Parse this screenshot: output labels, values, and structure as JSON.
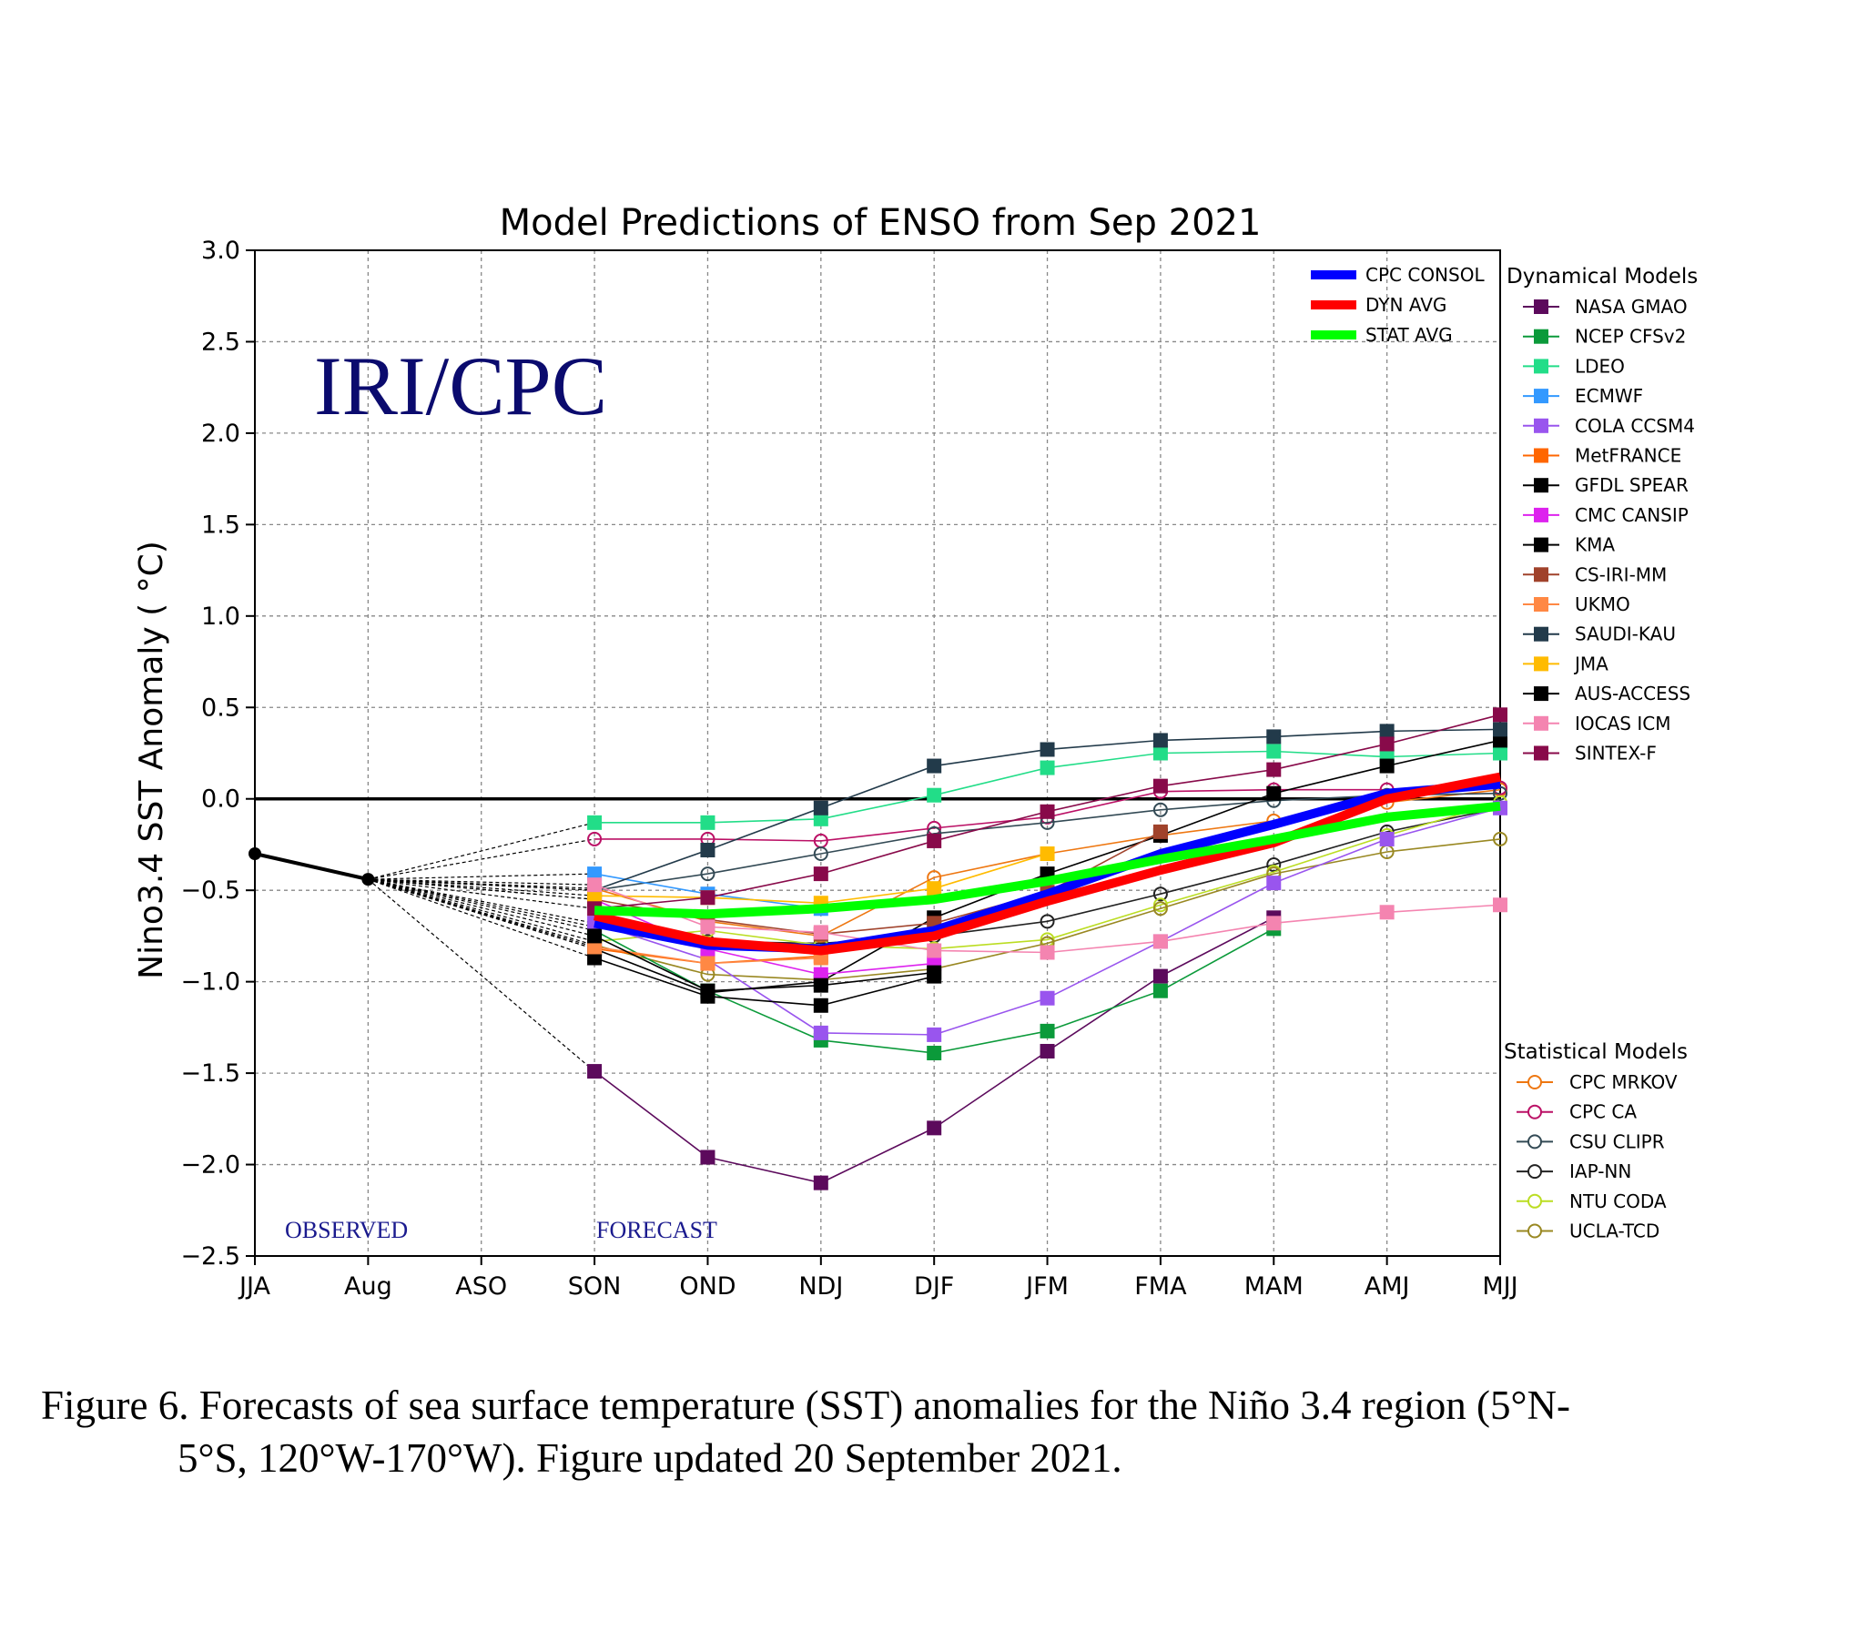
{
  "chart_data": {
    "type": "line",
    "title": "Model Predictions of ENSO from Sep 2021",
    "ylabel": "Nino3.4 SST Anomaly ( °C)",
    "xlabel": "",
    "categories": [
      "JJA",
      "Aug",
      "ASO",
      "SON",
      "OND",
      "NDJ",
      "DJF",
      "JFM",
      "FMA",
      "MAM",
      "AMJ",
      "MJJ"
    ],
    "ylim": [
      -2.5,
      3.0
    ],
    "yticks": [
      3.0,
      2.5,
      2.0,
      1.5,
      1.0,
      0.5,
      0.0,
      -0.5,
      -1.0,
      -1.5,
      -2.0,
      -2.5
    ],
    "ytick_labels": [
      "3.0",
      "2.5",
      "2.0",
      "1.5",
      "1.0",
      "0.5",
      "0.0",
      "−0.5",
      "−1.0",
      "−1.5",
      "−2.0",
      "−2.5"
    ],
    "grid": true,
    "watermark": "IRI/CPC",
    "annotations": {
      "observed": "OBSERVED",
      "forecast": "FORECAST"
    },
    "observed": {
      "x": [
        "JJA",
        "Aug"
      ],
      "values": [
        -0.3,
        -0.44
      ],
      "color": "#000000"
    },
    "consensus": [
      {
        "name": "CPC CONSOL",
        "color": "#0000ff",
        "values": [
          null,
          null,
          null,
          -0.68,
          -0.8,
          -0.82,
          -0.72,
          -0.52,
          -0.3,
          -0.14,
          0.03,
          0.08
        ]
      },
      {
        "name": "DYN AVG",
        "color": "#ff0000",
        "values": [
          null,
          null,
          null,
          -0.64,
          -0.78,
          -0.83,
          -0.75,
          -0.56,
          -0.39,
          -0.24,
          0.0,
          0.12
        ]
      },
      {
        "name": "STAT AVG",
        "color": "#00ff00",
        "values": [
          null,
          null,
          null,
          -0.61,
          -0.63,
          -0.6,
          -0.55,
          -0.45,
          -0.33,
          -0.22,
          -0.1,
          -0.04
        ]
      }
    ],
    "dynamical_legend_title": "Dynamical Models",
    "dynamical": [
      {
        "name": "NASA GMAO",
        "color": "#5c0a5c",
        "values": [
          null,
          null,
          null,
          -1.49,
          -1.96,
          -2.1,
          -1.8,
          -1.38,
          -0.97,
          -0.65,
          null,
          null
        ]
      },
      {
        "name": "NCEP CFSv2",
        "color": "#0b9a3a",
        "values": [
          null,
          null,
          null,
          -0.72,
          -1.05,
          -1.32,
          -1.39,
          -1.27,
          -1.05,
          -0.71,
          null,
          null
        ]
      },
      {
        "name": "LDEO",
        "color": "#22dd88",
        "values": [
          null,
          null,
          null,
          -0.13,
          -0.13,
          -0.11,
          0.02,
          0.17,
          0.25,
          0.26,
          0.23,
          0.25
        ]
      },
      {
        "name": "ECMWF",
        "color": "#3399ff",
        "values": [
          null,
          null,
          null,
          -0.41,
          -0.52,
          -0.6,
          null,
          null,
          null,
          null,
          null,
          null
        ]
      },
      {
        "name": "COLA CCSM4",
        "color": "#9955ee",
        "values": [
          null,
          null,
          null,
          -0.68,
          -0.88,
          -1.28,
          -1.29,
          -1.09,
          -0.78,
          -0.46,
          -0.22,
          -0.05
        ]
      },
      {
        "name": "MetFRANCE",
        "color": "#ff6600",
        "values": [
          null,
          null,
          null,
          -0.82,
          -0.9,
          -0.86,
          null,
          null,
          null,
          null,
          null,
          null
        ]
      },
      {
        "name": "GFDL SPEAR",
        "color": "#000000",
        "values": [
          null,
          null,
          null,
          -0.82,
          -1.06,
          -1.0,
          -0.65,
          -0.41,
          -0.2,
          0.03,
          0.18,
          0.32
        ]
      },
      {
        "name": "CMC CANSIP",
        "color": "#dd22ee",
        "values": [
          null,
          null,
          null,
          -0.55,
          -0.82,
          -0.96,
          -0.9,
          null,
          null,
          null,
          null,
          null
        ]
      },
      {
        "name": "KMA",
        "color": "#000000",
        "values": [
          null,
          null,
          null,
          -0.87,
          -1.08,
          -1.13,
          -0.97,
          null,
          null,
          null,
          null,
          null
        ]
      },
      {
        "name": "CS-IRI-MM",
        "color": "#a0422b",
        "values": [
          null,
          null,
          null,
          -0.55,
          -0.66,
          -0.74,
          -0.68,
          -0.51,
          -0.18,
          null,
          null,
          null
        ]
      },
      {
        "name": "UKMO",
        "color": "#ff8844",
        "values": [
          null,
          null,
          null,
          -0.81,
          -0.9,
          -0.87,
          null,
          null,
          null,
          null,
          null,
          null
        ]
      },
      {
        "name": "SAUDI-KAU",
        "color": "#223a4a",
        "values": [
          null,
          null,
          null,
          -0.5,
          -0.28,
          -0.05,
          0.18,
          0.27,
          0.32,
          0.34,
          0.37,
          0.38
        ]
      },
      {
        "name": "JMA",
        "color": "#ffbb00",
        "values": [
          null,
          null,
          null,
          -0.53,
          -0.54,
          -0.57,
          -0.49,
          -0.3,
          null,
          null,
          null,
          null
        ]
      },
      {
        "name": "AUS-ACCESS",
        "color": "#000000",
        "values": [
          null,
          null,
          null,
          -0.75,
          -1.05,
          -1.02,
          -0.95,
          null,
          null,
          null,
          null,
          null
        ]
      },
      {
        "name": "IOCAS ICM",
        "color": "#f484b0",
        "values": [
          null,
          null,
          null,
          -0.47,
          -0.7,
          -0.73,
          -0.83,
          -0.84,
          -0.78,
          -0.68,
          -0.62,
          -0.58
        ]
      },
      {
        "name": "SINTEX-F",
        "color": "#880a4a",
        "values": [
          null,
          null,
          null,
          -0.6,
          -0.54,
          -0.41,
          -0.23,
          -0.07,
          0.07,
          0.16,
          0.3,
          0.46
        ]
      }
    ],
    "statistical_legend_title": "Statistical Models",
    "statistical": [
      {
        "name": "CPC MRKOV",
        "color": "#ee7711",
        "values": [
          null,
          null,
          null,
          -0.49,
          -0.67,
          -0.75,
          -0.43,
          -0.3,
          -0.2,
          -0.12,
          -0.02,
          0.05
        ]
      },
      {
        "name": "CPC CA",
        "color": "#bb1166",
        "values": [
          null,
          null,
          null,
          -0.22,
          -0.22,
          -0.23,
          -0.16,
          -0.1,
          0.04,
          0.05,
          0.05,
          0.06
        ]
      },
      {
        "name": "CSU CLIPR",
        "color": "#334a55",
        "values": [
          null,
          null,
          null,
          -0.5,
          -0.41,
          -0.3,
          -0.19,
          -0.13,
          -0.06,
          -0.01,
          0.02,
          0.03
        ]
      },
      {
        "name": "IAP-NN",
        "color": "#222222",
        "values": [
          null,
          null,
          null,
          -0.7,
          -0.78,
          -0.79,
          -0.75,
          -0.67,
          -0.52,
          -0.36,
          -0.18,
          -0.05
        ]
      },
      {
        "name": "NTU CODA",
        "color": "#bbdd22",
        "values": [
          null,
          null,
          null,
          -0.78,
          -0.72,
          -0.8,
          -0.82,
          -0.77,
          -0.58,
          -0.4,
          -0.2,
          -0.02
        ]
      },
      {
        "name": "UCLA-TCD",
        "color": "#998822",
        "values": [
          null,
          null,
          null,
          -0.8,
          -0.96,
          -0.99,
          -0.93,
          -0.79,
          -0.6,
          -0.41,
          -0.29,
          -0.22
        ]
      }
    ]
  },
  "caption": {
    "line1": "Figure 6. Forecasts of sea surface temperature (SST) anomalies for the Niño 3.4 region (5°N-",
    "line2": "5°S, 120°W-170°W). Figure updated 20 September 2021."
  }
}
